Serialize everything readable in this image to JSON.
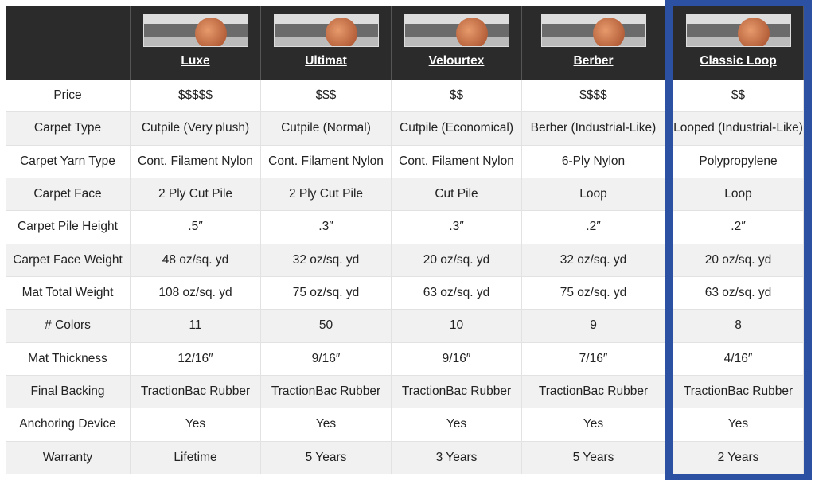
{
  "header": {
    "columns": [
      "Luxe",
      "Ultimat",
      "Velourtex",
      "Berber",
      "Classic Loop"
    ]
  },
  "table": {
    "rows": [
      [
        "Price",
        "$$$$$",
        "$$$",
        "$$",
        "$$$$",
        "$$"
      ],
      [
        "Carpet Type",
        "Cutpile (Very plush)",
        "Cutpile (Normal)",
        "Cutpile (Economical)",
        "Berber (Industrial-Like)",
        "Looped (Industrial-Like)"
      ],
      [
        "Carpet Yarn Type",
        "Cont. Filament Nylon",
        "Cont. Filament Nylon",
        "Cont. Filament Nylon",
        "6-Ply Nylon",
        "Polypropylene"
      ],
      [
        "Carpet Face",
        "2 Ply Cut Pile",
        "2 Ply Cut Pile",
        "Cut Pile",
        "Loop",
        "Loop"
      ],
      [
        "Carpet Pile Height",
        ".5″",
        ".3″",
        ".3″",
        ".2″",
        ".2″"
      ],
      [
        "Carpet Face Weight",
        "48 oz/sq. yd",
        "32 oz/sq. yd",
        "20 oz/sq. yd",
        "32 oz/sq. yd",
        "20 oz/sq. yd"
      ],
      [
        "Mat Total Weight",
        "108 oz/sq. yd",
        "75 oz/sq. yd",
        "63 oz/sq. yd",
        "75 oz/sq. yd",
        "63 oz/sq. yd"
      ],
      [
        "# Colors",
        "11",
        "50",
        "10",
        "9",
        "8"
      ],
      [
        "Mat Thickness",
        "12/16″",
        "9/16″",
        "9/16″",
        "7/16″",
        "4/16″"
      ],
      [
        "Final Backing",
        "TractionBac Rubber",
        "TractionBac Rubber",
        "TractionBac Rubber",
        "TractionBac Rubber",
        "TractionBac Rubber"
      ],
      [
        "Anchoring Device",
        "Yes",
        "Yes",
        "Yes",
        "Yes",
        "Yes"
      ],
      [
        "Warranty",
        "Lifetime",
        "5 Years",
        "3 Years",
        "5 Years",
        "2 Years"
      ]
    ]
  }
}
